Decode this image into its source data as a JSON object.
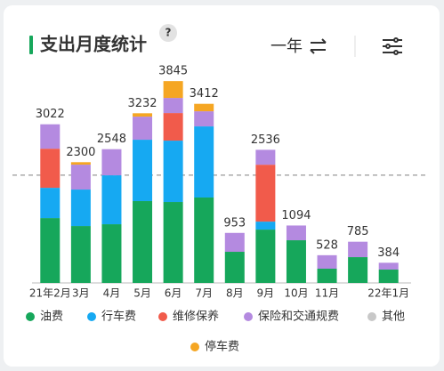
{
  "controls": {
    "help": "?",
    "period": "一年"
  },
  "chart_data": {
    "type": "stacked-bar",
    "title": "支出月度统计",
    "categories": [
      "21年2月",
      "3月",
      "4月",
      "5月",
      "6月",
      "7月",
      "8月",
      "9月",
      "10月",
      "11月",
      null,
      "22年1月"
    ],
    "series": [
      {
        "name": "油费",
        "color": "#16a75b",
        "values": [
          1236,
          1084,
          1118,
          1559,
          1542,
          1627,
          593,
          1016,
          813,
          271,
          491,
          254
        ]
      },
      {
        "name": "行车费",
        "color": "#16a9f2",
        "values": [
          576,
          695,
          932,
          1169,
          1169,
          1355,
          0,
          152,
          0,
          0,
          0,
          0
        ]
      },
      {
        "name": "维修保养",
        "color": "#f15b4b",
        "values": [
          745,
          0,
          0,
          0,
          525,
          0,
          0,
          1084,
          0,
          0,
          0,
          0
        ]
      },
      {
        "name": "保险和交通规费",
        "color": "#b48ae0",
        "values": [
          465,
          474,
          498,
          440,
          288,
          288,
          360,
          284,
          281,
          257,
          294,
          130
        ]
      },
      {
        "name": "其他",
        "color": "#c8c8c8",
        "values": [
          0,
          0,
          0,
          0,
          0,
          0,
          0,
          0,
          0,
          0,
          0,
          0
        ]
      },
      {
        "name": "停车费",
        "color": "#f5a623",
        "values": [
          0,
          47,
          0,
          64,
          321,
          142,
          0,
          0,
          0,
          0,
          0,
          0
        ]
      }
    ],
    "totals": [
      3022,
      2300,
      2548,
      3232,
      3845,
      3412,
      953,
      2536,
      1094,
      528,
      785,
      384
    ],
    "reference_line": 2053,
    "ylim": [
      0,
      4000
    ]
  }
}
